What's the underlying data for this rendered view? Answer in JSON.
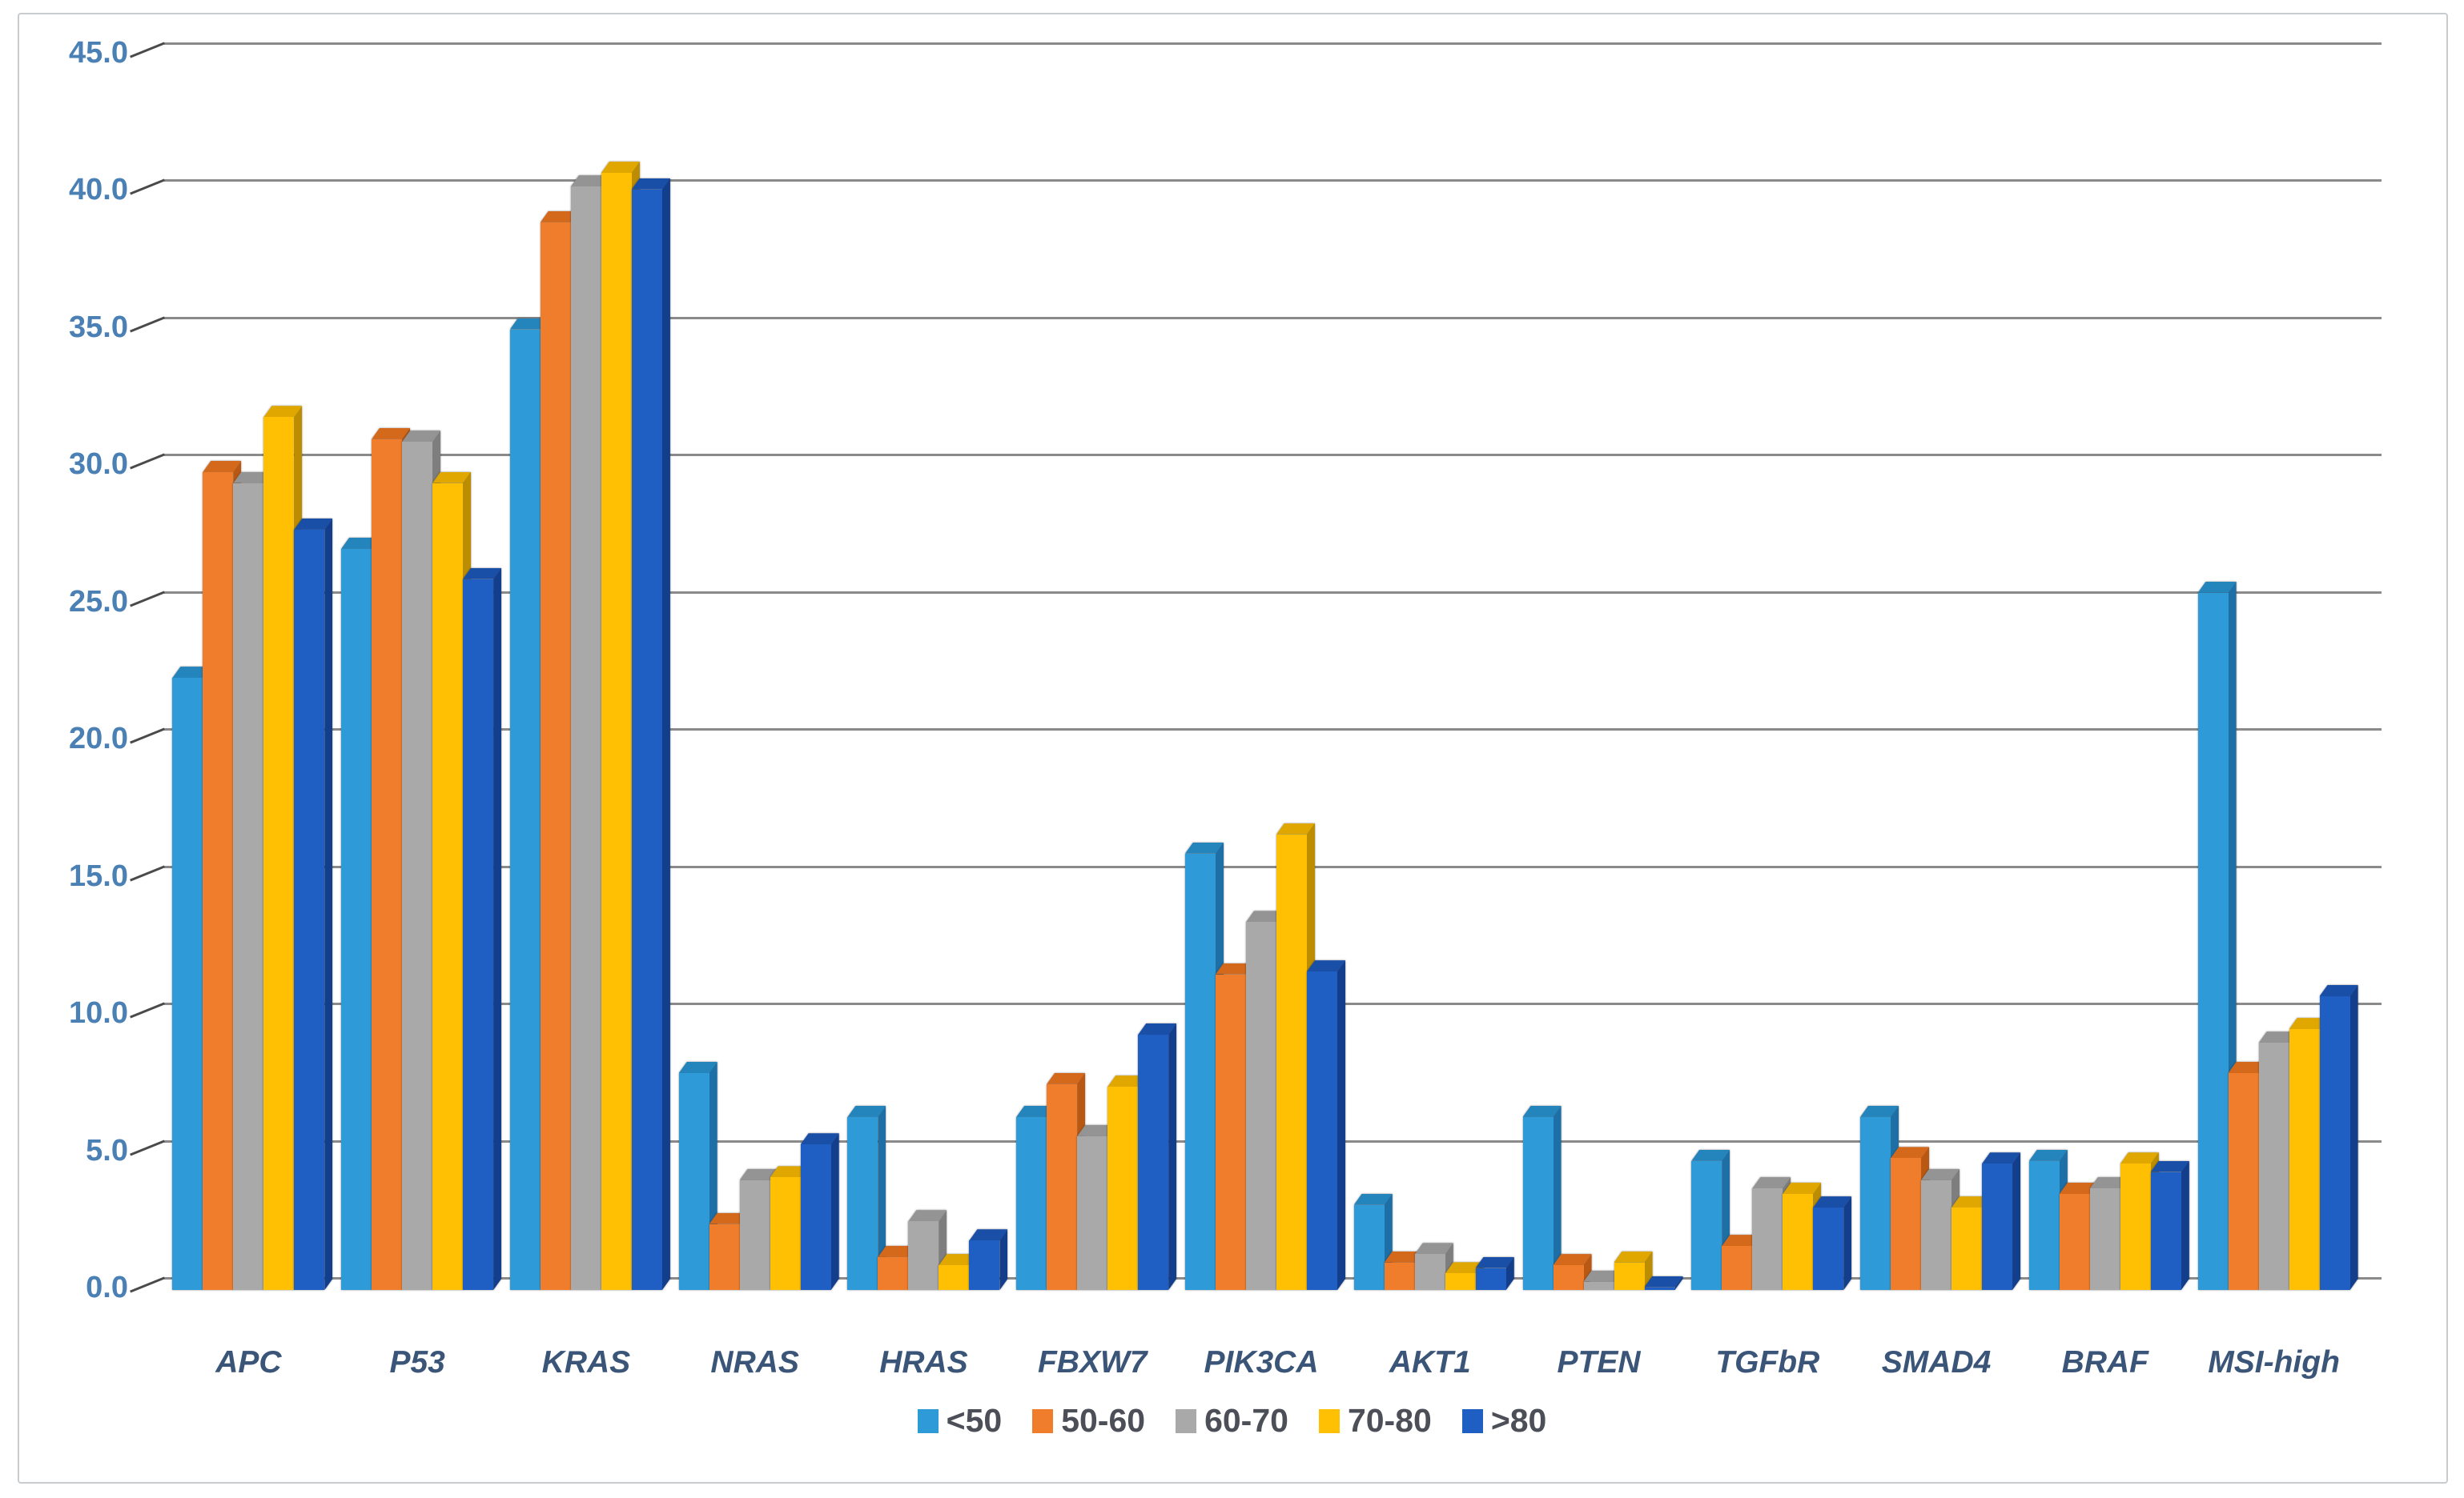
{
  "chart_data": {
    "type": "bar",
    "style": "3d-grouped-columns",
    "title": "",
    "xlabel": "",
    "ylabel": "",
    "categories": [
      "APC",
      "P53",
      "KRAS",
      "NRAS",
      "HRAS",
      "FBXW7",
      "PIK3CA",
      "AKT1",
      "PTEN",
      "TGFbR",
      "SMAD4",
      "BRAF",
      "MSI-high"
    ],
    "series": [
      {
        "name": "<50",
        "color": "#2E9BD8",
        "top_shade": "#2484BC",
        "side_shade": "#1D6FA5",
        "values": [
          22.3,
          27.0,
          35.0,
          7.9,
          6.3,
          6.3,
          15.9,
          3.1,
          6.3,
          4.7,
          6.3,
          4.7,
          25.4
        ]
      },
      {
        "name": "50-60",
        "color": "#F07D2B",
        "top_shade": "#D4691C",
        "side_shade": "#B95813",
        "values": [
          29.8,
          31.0,
          38.9,
          2.4,
          1.2,
          7.5,
          11.5,
          1.0,
          0.9,
          1.6,
          4.8,
          3.5,
          7.9
        ]
      },
      {
        "name": "60-70",
        "color": "#A9A9A9",
        "top_shade": "#949494",
        "side_shade": "#7E7E7E",
        "values": [
          29.4,
          30.9,
          40.2,
          4.0,
          2.5,
          5.6,
          13.4,
          1.3,
          0.3,
          3.7,
          4.0,
          3.7,
          9.0
        ]
      },
      {
        "name": "70-80",
        "color": "#FFC003",
        "top_shade": "#DFA700",
        "side_shade": "#BC8D00",
        "values": [
          31.8,
          29.4,
          40.7,
          4.1,
          0.9,
          7.4,
          16.6,
          0.6,
          1.0,
          3.5,
          3.0,
          4.6,
          9.5
        ]
      },
      {
        "name": ">80",
        "color": "#1F5FC4",
        "top_shade": "#1A4FA8",
        "side_shade": "#133E8C",
        "values": [
          27.7,
          25.9,
          40.1,
          5.3,
          1.8,
          9.3,
          11.6,
          0.8,
          0.1,
          3.0,
          4.6,
          4.3,
          10.7
        ]
      }
    ],
    "ylim": [
      0,
      45
    ],
    "ytick_step": 5,
    "y_tick_labels": [
      "45.0",
      "40.0",
      "35.0",
      "30.0",
      "25.0",
      "20.0",
      "15.0",
      "10.0",
      "5.0",
      "0.0"
    ],
    "grid": true,
    "gridline_color": "#8a8a8a",
    "legend_position": "bottom",
    "axis_label_color": "#4a80b4",
    "category_label_color": "#3a5578",
    "legend_text_color": "#4c4f57"
  }
}
